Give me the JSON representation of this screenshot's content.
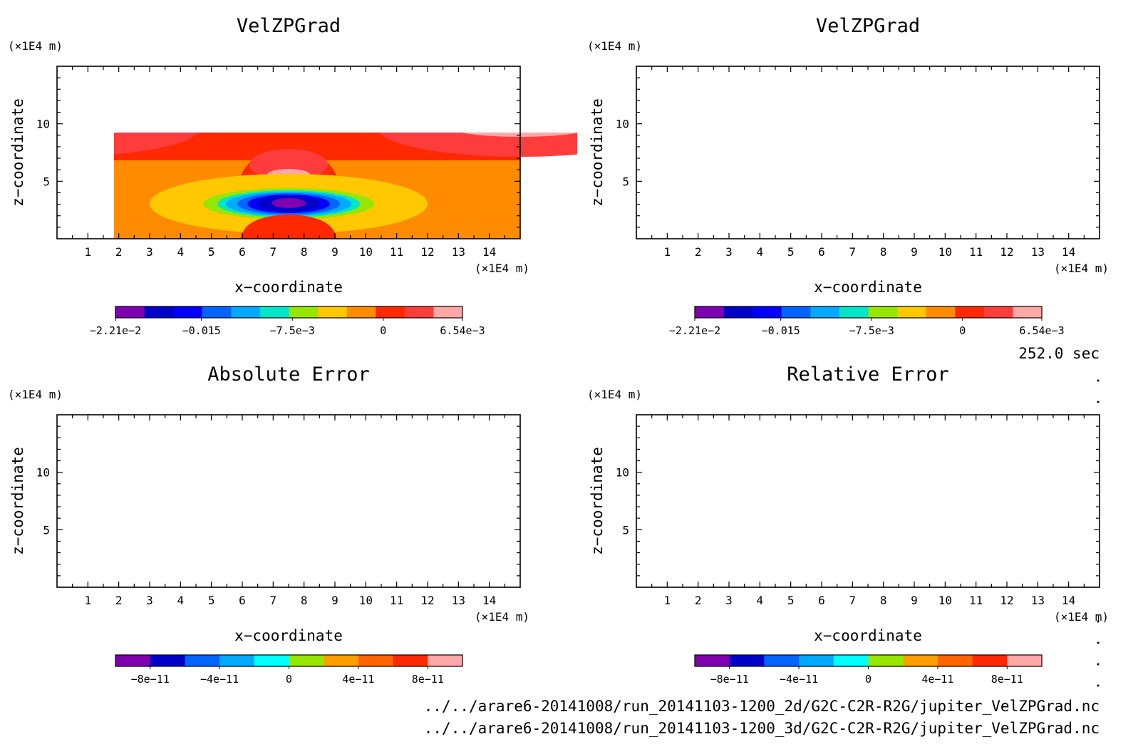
{
  "time_label": "252.0 sec",
  "file_paths": [
    "../../arare6-20141008/run_20141103-1200_2d/G2C-C2R-R2G/jupiter_VelZPGrad.nc",
    "../../arare6-20141008/run_20141103-1200_3d/G2C-C2R-R2G/jupiter_VelZPGrad.nc"
  ],
  "panels": [
    {
      "id": "top-left",
      "title": "VelZPGrad",
      "xlabel": "x−coordinate",
      "ylabel": "z−coordinate",
      "x_unit": "(×1E4 m)",
      "y_unit": "(×1E4 m)",
      "x_ticks": [
        "1",
        "2",
        "3",
        "4",
        "5",
        "6",
        "7",
        "8",
        "9",
        "10",
        "11",
        "12",
        "13",
        "14"
      ],
      "y_ticks": [
        "5",
        "10"
      ],
      "filled": true,
      "colorbar_labels": [
        "−2.21e−2",
        "−0.015",
        "−7.5e−3",
        "0",
        "6.54e−3"
      ]
    },
    {
      "id": "top-right",
      "title": "VelZPGrad",
      "xlabel": "x−coordinate",
      "ylabel": "z−coordinate",
      "x_unit": "(×1E4 m)",
      "y_unit": "(×1E4 m)",
      "x_ticks": [
        "1",
        "2",
        "3",
        "4",
        "5",
        "6",
        "7",
        "8",
        "9",
        "10",
        "11",
        "12",
        "13",
        "14"
      ],
      "y_ticks": [
        "5",
        "10"
      ],
      "filled": true,
      "colorbar_labels": [
        "−2.21e−2",
        "−0.015",
        "−7.5e−3",
        "0",
        "6.54e−3"
      ]
    },
    {
      "id": "bottom-left",
      "title": "Absolute Error",
      "xlabel": "x−coordinate",
      "ylabel": "z−coordinate",
      "x_unit": "(×1E4 m)",
      "y_unit": "(×1E4 m)",
      "x_ticks": [
        "1",
        "2",
        "3",
        "4",
        "5",
        "6",
        "7",
        "8",
        "9",
        "10",
        "11",
        "12",
        "13",
        "14"
      ],
      "y_ticks": [
        "5",
        "10"
      ],
      "filled": false,
      "colorbar_labels": [
        "−8e−11",
        "−4e−11",
        "0",
        "4e−11",
        "8e−11"
      ]
    },
    {
      "id": "bottom-right",
      "title": "Relative Error",
      "xlabel": "x−coordinate",
      "ylabel": "z−coordinate",
      "x_unit": "(×1E4 m)",
      "y_unit": "(×1E4 m)",
      "x_ticks": [
        "1",
        "2",
        "3",
        "4",
        "5",
        "6",
        "7",
        "8",
        "9",
        "10",
        "11",
        "12",
        "13",
        "14"
      ],
      "y_ticks": [
        "5",
        "10"
      ],
      "filled": false,
      "colorbar_labels": [
        "−8e−11",
        "−4e−11",
        "0",
        "4e−11",
        "8e−11"
      ]
    }
  ],
  "chart_data": [
    {
      "type": "heatmap",
      "title": "VelZPGrad",
      "xlabel": "x−coordinate",
      "ylabel": "z−coordinate",
      "xlim": [
        0,
        15
      ],
      "ylim": [
        0,
        15
      ],
      "x_ticks": [
        1,
        2,
        3,
        4,
        5,
        6,
        7,
        8,
        9,
        10,
        11,
        12,
        13,
        14
      ],
      "y_ticks": [
        5,
        10
      ],
      "colorbar": {
        "range": [
          -0.0221,
          0.00654
        ],
        "tick_values": [
          -0.0221,
          -0.015,
          -0.0075,
          0,
          0.00654
        ],
        "colors": [
          "#7f00b0",
          "#0000c8",
          "#0000ff",
          "#0064ff",
          "#00aaff",
          "#00e6c8",
          "#96e600",
          "#ffc800",
          "#ff8c00",
          "#ff2800",
          "#ff3c3c",
          "#ffa8a8"
        ]
      }
    },
    {
      "type": "heatmap",
      "title": "VelZPGrad",
      "xlabel": "x−coordinate",
      "ylabel": "z−coordinate",
      "xlim": [
        0,
        15
      ],
      "ylim": [
        0,
        15
      ],
      "x_ticks": [
        1,
        2,
        3,
        4,
        5,
        6,
        7,
        8,
        9,
        10,
        11,
        12,
        13,
        14
      ],
      "y_ticks": [
        5,
        10
      ],
      "colorbar": {
        "range": [
          -0.0221,
          0.00654
        ],
        "tick_values": [
          -0.0221,
          -0.015,
          -0.0075,
          0,
          0.00654
        ],
        "colors": [
          "#7f00b0",
          "#0000c8",
          "#0000ff",
          "#0064ff",
          "#00aaff",
          "#00e6c8",
          "#96e600",
          "#ffc800",
          "#ff8c00",
          "#ff2800",
          "#ff3c3c",
          "#ffa8a8"
        ]
      }
    },
    {
      "type": "heatmap",
      "title": "Absolute Error",
      "xlabel": "x−coordinate",
      "ylabel": "z−coordinate",
      "xlim": [
        0,
        15
      ],
      "ylim": [
        0,
        15
      ],
      "x_ticks": [
        1,
        2,
        3,
        4,
        5,
        6,
        7,
        8,
        9,
        10,
        11,
        12,
        13,
        14
      ],
      "y_ticks": [
        5,
        10
      ],
      "colorbar": {
        "range": [
          -1e-10,
          1e-10
        ],
        "tick_values": [
          -8e-11,
          -4e-11,
          0,
          4e-11,
          8e-11
        ],
        "colors": [
          "#7f00b0",
          "#0000c8",
          "#0064ff",
          "#00aaff",
          "#00ffff",
          "#96e600",
          "#ffa000",
          "#ff6400",
          "#ff2800",
          "#ffa8a8"
        ]
      }
    },
    {
      "type": "heatmap",
      "title": "Relative Error",
      "xlabel": "x−coordinate",
      "ylabel": "z−coordinate",
      "xlim": [
        0,
        15
      ],
      "ylim": [
        0,
        15
      ],
      "x_ticks": [
        1,
        2,
        3,
        4,
        5,
        6,
        7,
        8,
        9,
        10,
        11,
        12,
        13,
        14
      ],
      "y_ticks": [
        5,
        10
      ],
      "colorbar": {
        "range": [
          -1e-10,
          1e-10
        ],
        "tick_values": [
          -8e-11,
          -4e-11,
          0,
          4e-11,
          8e-11
        ],
        "colors": [
          "#7f00b0",
          "#0000c8",
          "#0064ff",
          "#00aaff",
          "#00ffff",
          "#96e600",
          "#ffa000",
          "#ff6400",
          "#ff2800",
          "#ffa8a8"
        ]
      }
    }
  ]
}
